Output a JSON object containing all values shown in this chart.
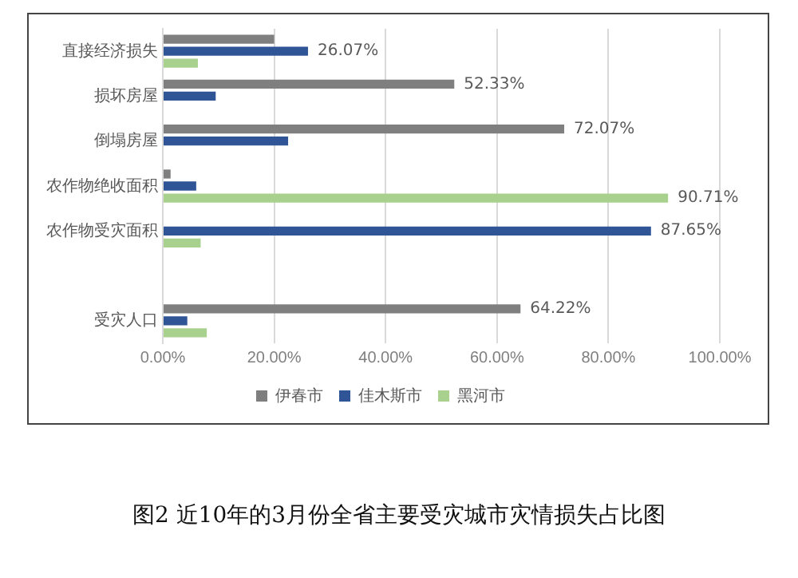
{
  "chart_data": {
    "type": "bar",
    "orientation": "horizontal",
    "categories": [
      "直接经济损失",
      "损坏房屋",
      "倒塌房屋",
      "农作物绝收面积",
      "农作物受灾面积",
      null,
      "受灾人口"
    ],
    "series": [
      {
        "name": "伊春市",
        "color": "#7f7f7f",
        "values": [
          20,
          52.33,
          72.07,
          1.4,
          null,
          null,
          64.22
        ],
        "value_labels": [
          null,
          "52.33%",
          "72.07%",
          null,
          null,
          null,
          "64.22%"
        ]
      },
      {
        "name": "佳木斯市",
        "color": "#2f5597",
        "values": [
          26.07,
          9.5,
          22.5,
          6,
          87.65,
          null,
          4.4
        ],
        "value_labels": [
          "26.07%",
          null,
          null,
          null,
          "87.65%",
          null,
          null
        ]
      },
      {
        "name": "黑河市",
        "color": "#a9d18e",
        "values": [
          6.3,
          null,
          null,
          90.71,
          6.8,
          null,
          7.9
        ],
        "value_labels": [
          null,
          null,
          null,
          "90.71%",
          null,
          null,
          null
        ]
      }
    ],
    "xlim": [
      0,
      100
    ],
    "xticks": [
      {
        "value": 0,
        "label": "0.00%"
      },
      {
        "value": 20,
        "label": "20.00%"
      },
      {
        "value": 40,
        "label": "40.00%"
      },
      {
        "value": 60,
        "label": "60.00%"
      },
      {
        "value": 80,
        "label": "80.00%"
      },
      {
        "value": 100,
        "label": "100.00%"
      }
    ],
    "grid": "x",
    "legend": "bottom",
    "annotations": [
      "图2 近10年的3月份全省主要受灾城市灾情损失占比图"
    ]
  }
}
